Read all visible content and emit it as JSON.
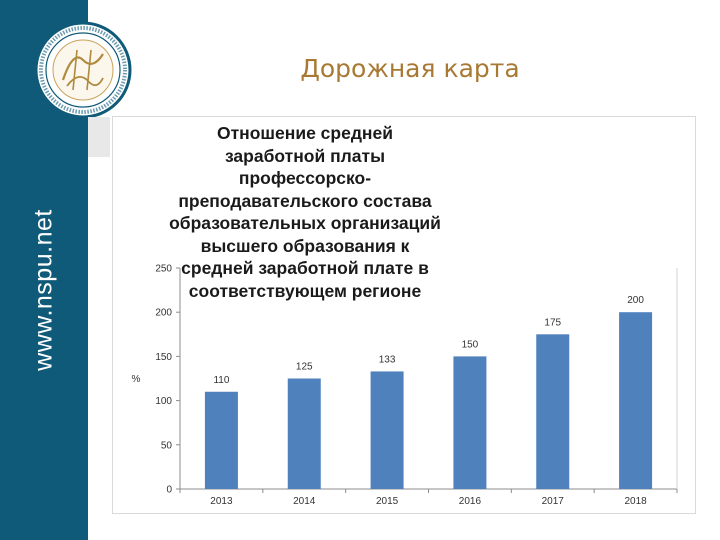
{
  "sidebar": {
    "site_text": "www.nspu.net",
    "color": "#0f5a78"
  },
  "logo": {
    "icon": "university-seal-icon"
  },
  "slide": {
    "title": "Дорожная карта",
    "title_color": "#a87933"
  },
  "chart_data": {
    "type": "bar",
    "title": "Отношение средней заработной платы профессорско-преподавательского состава образовательных организаций высшего образования к средней заработной плате в соответствующем регионе",
    "ylabel": "%",
    "xlabel": "",
    "categories": [
      "2013",
      "2014",
      "2015",
      "2016",
      "2017",
      "2018"
    ],
    "values": [
      110,
      125,
      133,
      150,
      175,
      200
    ],
    "ylim": [
      0,
      250
    ],
    "yticks": [
      0,
      50,
      100,
      150,
      200,
      250
    ],
    "bar_color": "#4f81bd",
    "grid": false,
    "data_labels": true
  }
}
